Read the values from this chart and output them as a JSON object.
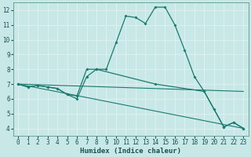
{
  "xlabel": "Humidex (Indice chaleur)",
  "bg_color": "#c8e8e8",
  "grid_color": "#e0f0f0",
  "line_color": "#1a7a6e",
  "xlim": [
    -0.5,
    23.5
  ],
  "ylim": [
    3.5,
    12.5
  ],
  "yticks": [
    4,
    5,
    6,
    7,
    8,
    9,
    10,
    11,
    12
  ],
  "xticks": [
    0,
    1,
    2,
    3,
    4,
    5,
    6,
    7,
    8,
    9,
    10,
    11,
    12,
    13,
    14,
    15,
    16,
    17,
    18,
    19,
    20,
    21,
    22,
    23
  ],
  "series": [
    {
      "x": [
        0,
        1,
        2,
        3,
        4,
        5,
        6,
        7,
        8,
        9,
        10,
        11,
        12,
        13,
        14,
        15,
        16,
        17,
        18,
        19,
        20,
        21,
        22,
        23
      ],
      "y": [
        7.0,
        6.8,
        6.9,
        6.8,
        6.7,
        6.3,
        6.0,
        7.5,
        8.0,
        8.0,
        9.8,
        11.6,
        11.5,
        11.1,
        12.2,
        12.2,
        11.0,
        9.3,
        7.5,
        6.5,
        5.3,
        4.1,
        4.4,
        4.0
      ],
      "marker": true
    },
    {
      "x": [
        0,
        23
      ],
      "y": [
        7.0,
        6.5
      ],
      "marker": false
    },
    {
      "x": [
        0,
        23
      ],
      "y": [
        7.0,
        4.0
      ],
      "marker": false
    },
    {
      "x": [
        0,
        1,
        2,
        3,
        4,
        5,
        6,
        7,
        8,
        14,
        19,
        21,
        22,
        23
      ],
      "y": [
        7.0,
        6.8,
        6.9,
        6.8,
        6.7,
        6.3,
        6.2,
        8.0,
        8.0,
        7.0,
        6.5,
        4.1,
        4.4,
        4.0
      ],
      "marker": true
    }
  ]
}
